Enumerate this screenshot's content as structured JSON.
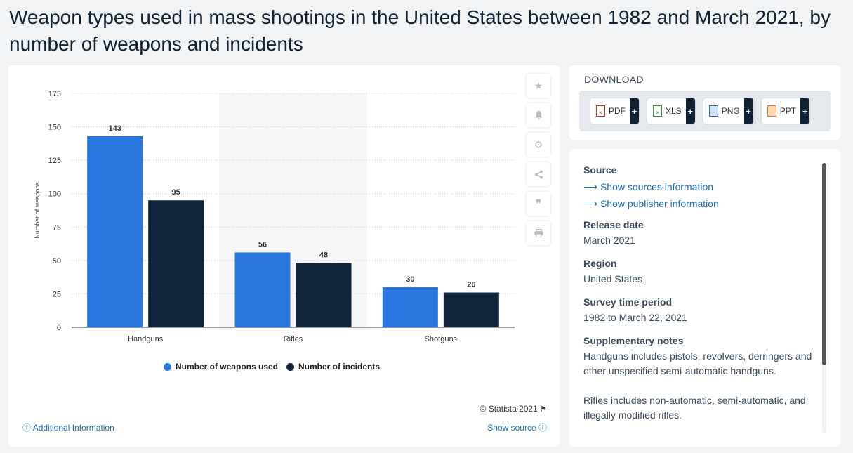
{
  "page": {
    "title": "Weapon types used in mass shootings in the United States between 1982 and March 2021, by number of weapons and incidents"
  },
  "chart_data": {
    "type": "bar",
    "categories": [
      "Handguns",
      "Rifles",
      "Shotguns"
    ],
    "series": [
      {
        "name": "Number of weapons used",
        "values": [
          143,
          56,
          30
        ],
        "color": "#2876dd"
      },
      {
        "name": "Number of incidents",
        "values": [
          95,
          48,
          26
        ],
        "color": "#10243b"
      }
    ],
    "ylabel": "Number of weapons",
    "xlabel": "",
    "ylim": [
      0,
      175
    ],
    "yticks": [
      0,
      25,
      50,
      75,
      100,
      125,
      150,
      175
    ],
    "grid": true,
    "legend": "bottom",
    "highlighted_category": "Rifles"
  },
  "chart_footer": {
    "copyright": "© Statista 2021",
    "additional_info": "Additional Information",
    "show_source": "Show source"
  },
  "tools": [
    "star-icon",
    "bell-icon",
    "gear-icon",
    "share-icon",
    "quote-icon",
    "print-icon"
  ],
  "download": {
    "title": "DOWNLOAD",
    "buttons": [
      {
        "label": "PDF",
        "color": "#c0392b"
      },
      {
        "label": "XLS",
        "color": "#3a9a3a"
      },
      {
        "label": "PNG",
        "color": "#2a6fb0"
      },
      {
        "label": "PPT",
        "color": "#e07b20"
      }
    ]
  },
  "info": {
    "source_heading": "Source",
    "source_link1": "Show sources information",
    "source_link2": "Show publisher information",
    "release_heading": "Release date",
    "release_value": "March 2021",
    "region_heading": "Region",
    "region_value": "United States",
    "survey_heading": "Survey time period",
    "survey_value": "1982 to March 22, 2021",
    "notes_heading": "Supplementary notes",
    "notes_p1": "Handguns includes pistols, revolvers, derringers and other unspecified semi-automatic handguns.",
    "notes_p2": "Rifles includes non-automatic, semi-automatic, and illegally modified rifles."
  }
}
